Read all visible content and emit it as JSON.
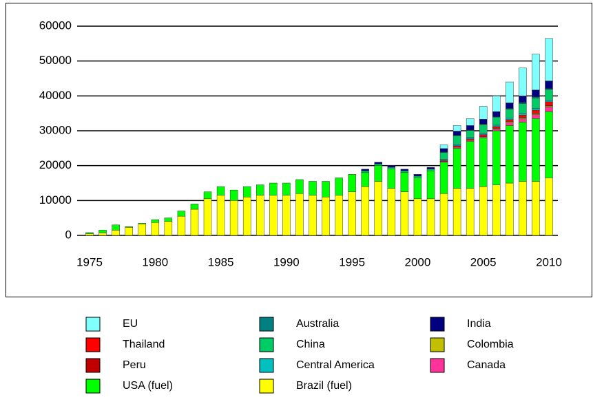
{
  "chart_data": {
    "type": "stacked_bar",
    "x": [
      1975,
      1976,
      1977,
      1978,
      1979,
      1980,
      1981,
      1982,
      1983,
      1984,
      1985,
      1986,
      1987,
      1988,
      1989,
      1990,
      1991,
      1992,
      1993,
      1994,
      1995,
      1996,
      1997,
      1998,
      1999,
      2000,
      2001,
      2002,
      2003,
      2004,
      2005,
      2006,
      2007,
      2008,
      2009,
      2010
    ],
    "xlim": [
      1975,
      2010
    ],
    "xticks": [
      1975,
      1980,
      1985,
      1990,
      1995,
      2000,
      2005,
      2010
    ],
    "ylim": [
      0,
      60000
    ],
    "yticks": [
      0,
      10000,
      20000,
      30000,
      40000,
      50000,
      60000
    ],
    "grid": true,
    "series": [
      {
        "name": "Brazil (fuel)",
        "color": "#ffff00",
        "values": [
          500,
          700,
          1500,
          2300,
          3300,
          3700,
          4000,
          5500,
          7500,
          10500,
          11500,
          10000,
          11000,
          11500,
          11500,
          11500,
          12000,
          11500,
          11000,
          11500,
          12500,
          14000,
          15500,
          13500,
          12500,
          10500,
          10500,
          12000,
          13500,
          13500,
          14000,
          14500,
          15000,
          15500,
          15500,
          16500
        ]
      },
      {
        "name": "USA (fuel)",
        "color": "#00ff00",
        "values": [
          300,
          800,
          1500,
          200,
          200,
          800,
          1000,
          1500,
          1500,
          2000,
          2500,
          3000,
          3000,
          3000,
          3500,
          3500,
          4000,
          4000,
          4500,
          5000,
          5000,
          4000,
          4500,
          5500,
          5500,
          6000,
          8000,
          9000,
          11500,
          13500,
          14000,
          15500,
          16500,
          17000,
          18000,
          19000
        ]
      },
      {
        "name": "Canada",
        "color": "#ff3399",
        "values": [
          0,
          0,
          0,
          0,
          0,
          0,
          0,
          0,
          0,
          0,
          0,
          0,
          0,
          0,
          0,
          0,
          0,
          0,
          0,
          0,
          0,
          0,
          0,
          0,
          0,
          0,
          0,
          200,
          300,
          300,
          300,
          500,
          800,
          900,
          1100,
          1300
        ]
      },
      {
        "name": "Colombia",
        "color": "#c0c000",
        "values": [
          0,
          0,
          0,
          0,
          0,
          0,
          0,
          0,
          0,
          0,
          0,
          0,
          0,
          0,
          0,
          0,
          0,
          0,
          0,
          0,
          0,
          0,
          0,
          0,
          0,
          0,
          0,
          0,
          0,
          0,
          100,
          200,
          300,
          300,
          300,
          300
        ]
      },
      {
        "name": "Peru",
        "color": "#c00000",
        "values": [
          0,
          0,
          0,
          0,
          0,
          0,
          0,
          0,
          0,
          0,
          0,
          0,
          0,
          0,
          0,
          0,
          0,
          0,
          0,
          0,
          0,
          0,
          0,
          0,
          0,
          0,
          0,
          0,
          0,
          0,
          0,
          0,
          0,
          100,
          100,
          200
        ]
      },
      {
        "name": "Thailand",
        "color": "#ff0000",
        "values": [
          0,
          0,
          0,
          0,
          0,
          0,
          0,
          0,
          0,
          0,
          0,
          0,
          0,
          0,
          0,
          0,
          0,
          0,
          0,
          0,
          0,
          0,
          0,
          0,
          0,
          0,
          0,
          300,
          400,
          400,
          500,
          500,
          600,
          700,
          900,
          1000
        ]
      },
      {
        "name": "Central America",
        "color": "#00c0c0",
        "values": [
          0,
          0,
          0,
          0,
          0,
          0,
          0,
          0,
          0,
          0,
          0,
          0,
          0,
          0,
          0,
          0,
          0,
          0,
          0,
          0,
          0,
          0,
          0,
          0,
          0,
          0,
          0,
          300,
          400,
          400,
          400,
          400,
          500,
          500,
          500,
          500
        ]
      },
      {
        "name": "China",
        "color": "#00cc66",
        "values": [
          0,
          0,
          0,
          0,
          0,
          0,
          0,
          0,
          0,
          0,
          0,
          0,
          0,
          0,
          0,
          0,
          0,
          0,
          0,
          0,
          0,
          500,
          500,
          500,
          500,
          500,
          500,
          2000,
          2500,
          2000,
          2500,
          2300,
          2500,
          2800,
          3000,
          3000
        ]
      },
      {
        "name": "Australia",
        "color": "#008080",
        "values": [
          0,
          0,
          0,
          0,
          0,
          0,
          0,
          0,
          0,
          0,
          0,
          0,
          0,
          0,
          0,
          0,
          0,
          0,
          0,
          0,
          0,
          0,
          0,
          0,
          0,
          0,
          0,
          100,
          100,
          100,
          100,
          100,
          200,
          300,
          300,
          300
        ]
      },
      {
        "name": "India",
        "color": "#000080",
        "values": [
          0,
          0,
          0,
          0,
          0,
          0,
          0,
          0,
          0,
          0,
          0,
          0,
          0,
          0,
          0,
          0,
          0,
          0,
          0,
          0,
          0,
          500,
          500,
          500,
          500,
          500,
          500,
          1000,
          1200,
          1300,
          1400,
          1500,
          1600,
          1900,
          2000,
          2200
        ]
      },
      {
        "name": "EU",
        "color": "#80ffff",
        "values": [
          0,
          0,
          0,
          0,
          0,
          0,
          0,
          0,
          0,
          0,
          0,
          0,
          0,
          0,
          0,
          0,
          0,
          0,
          0,
          0,
          0,
          0,
          0,
          0,
          0,
          0,
          0,
          1100,
          1600,
          2000,
          3700,
          4500,
          6000,
          8000,
          10300,
          12200
        ]
      }
    ]
  }
}
